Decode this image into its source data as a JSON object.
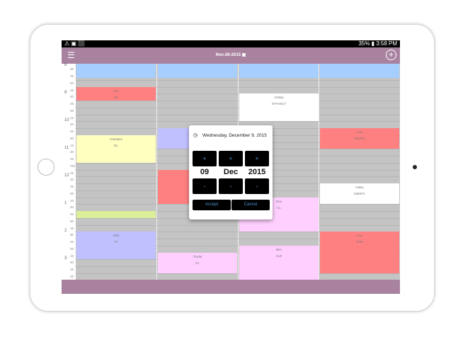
{
  "status_bar": {
    "right": "35% ▮ 3:58 PM",
    "left_icons": [
      "warning-icon",
      "image-icon",
      "bag-icon"
    ]
  },
  "header": {
    "date": "Nov-26-2015",
    "menu_icon": "☰",
    "add_icon": "+"
  },
  "colors": {
    "header": "#a9829f",
    "grid": "#c4c4c4"
  },
  "time_axis": {
    "start": "8:25",
    "hours": [
      {
        "label": "8",
        "marks": [
          "30",
          "45"
        ]
      },
      {
        "label": "9",
        "marks": [
          "00",
          "15",
          "30",
          "45"
        ]
      },
      {
        "label": "10",
        "marks": [
          "00",
          "15",
          "30",
          "45"
        ]
      },
      {
        "label": "11",
        "marks": [
          "00",
          "15",
          "30",
          "45"
        ]
      },
      {
        "label": "12",
        "marks": [
          "PM",
          "15",
          "30",
          "45"
        ]
      },
      {
        "label": "1",
        "marks": [
          "00",
          "15",
          "30",
          "45"
        ]
      },
      {
        "label": "2",
        "marks": [
          "00",
          "15",
          "30",
          "45"
        ]
      },
      {
        "label": "3",
        "marks": [
          "00",
          "15",
          "30",
          "45"
        ]
      },
      {
        "label": "4",
        "marks": [
          "00"
        ]
      }
    ]
  },
  "columns": [
    {
      "events": [
        {
          "start": "8:25",
          "end": "8:55",
          "color": "#a6cfff",
          "name": "",
          "code": ""
        },
        {
          "start": "9:15",
          "end": "9:45",
          "color": "#ff8080",
          "name": "Ann",
          "code": "IB"
        },
        {
          "start": "11:00",
          "end": "12:00",
          "color": "#ffffc0",
          "name": "Candace",
          "code": "DL"
        },
        {
          "start": "13:45",
          "end": "14:00",
          "color": "#dbef98",
          "name": "",
          "code": ""
        },
        {
          "start": "14:30",
          "end": "15:30",
          "color": "#c0c0ff",
          "name": "Jack",
          "code": "TL"
        }
      ]
    },
    {
      "events": [
        {
          "start": "8:25",
          "end": "8:55",
          "color": "#a6cfff",
          "name": "",
          "code": ""
        },
        {
          "start": "10:45",
          "end": "11:30",
          "color": "#c0c0ff",
          "name": "",
          "code": ""
        },
        {
          "start": "12:15",
          "end": "13:30",
          "color": "#ff8080",
          "name": "",
          "code": ""
        },
        {
          "start": "15:15",
          "end": "16:00",
          "color": "#ffd0ff",
          "name": "Trudie",
          "code": "CL"
        }
      ]
    },
    {
      "events": [
        {
          "start": "8:25",
          "end": "8:55",
          "color": "#a6cfff",
          "name": "",
          "code": ""
        },
        {
          "start": "9:30",
          "end": "10:30",
          "color": "#ffffff",
          "name": "Ashley",
          "code": "STFANCY"
        },
        {
          "start": "13:15",
          "end": "14:30",
          "color": "#ffd0ff",
          "name": "Geo",
          "code": "CL"
        },
        {
          "start": "15:00",
          "end": "16:15",
          "color": "#ffd0ff",
          "name": "Ben",
          "code": "CLE"
        }
      ]
    },
    {
      "events": [
        {
          "start": "8:25",
          "end": "8:55",
          "color": "#a6cfff",
          "name": "",
          "code": ""
        },
        {
          "start": "10:45",
          "end": "11:30",
          "color": "#ff8080",
          "name": "Lisa",
          "code": "NAVPN"
        },
        {
          "start": "12:45",
          "end": "13:30",
          "color": "#ffffff",
          "name": "Haley",
          "code": "NMSFA"
        },
        {
          "start": "14:30",
          "end": "16:00",
          "color": "#ff8080",
          "name": "Cox",
          "code": "STM"
        }
      ]
    }
  ],
  "date_picker": {
    "title": "Wednesday, December 9, 2015",
    "day": "09",
    "month": "Dec",
    "year": "2015",
    "plus": "+",
    "minus": "-",
    "accept": "Accept",
    "cancel": "Cancel"
  }
}
